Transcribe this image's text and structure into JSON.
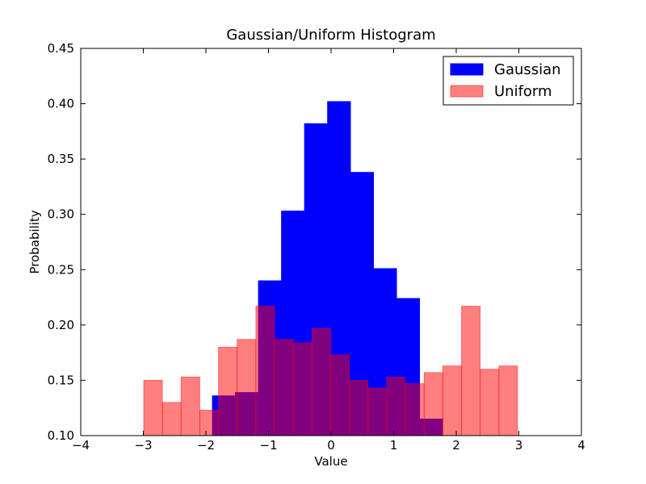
{
  "chart_data": {
    "type": "histogram",
    "title": "Gaussian/Uniform Histogram",
    "xlabel": "Value",
    "ylabel": "Probability",
    "xlim": [
      -4,
      4
    ],
    "xticks": [
      {
        "value": -4,
        "label": "−4"
      },
      {
        "value": -3,
        "label": "−3"
      },
      {
        "value": -2,
        "label": "−2"
      },
      {
        "value": -1,
        "label": "−1"
      },
      0,
      1,
      2,
      3,
      4
    ],
    "ylim": [
      0.1,
      0.45
    ],
    "yticks": [
      {
        "value": 0.1,
        "label": "0.10"
      },
      0.15,
      {
        "value": 0.2,
        "label": "0.20"
      },
      0.25,
      {
        "value": 0.3,
        "label": "0.30"
      },
      0.35,
      {
        "value": 0.4,
        "label": "0.40"
      },
      0.45
    ],
    "legend": "upper right",
    "series": [
      {
        "name": "Gaussian",
        "color": "#0000ff",
        "alpha": 1,
        "bins": [
          -1.897,
          -1.529,
          -1.161,
          -0.793,
          -0.425,
          -0.057,
          0.311,
          0.679,
          1.047,
          1.415,
          1.783
        ],
        "values": [
          0.136,
          0.139,
          0.24,
          0.303,
          0.382,
          0.402,
          0.338,
          0.251,
          0.224,
          0.115
        ]
      },
      {
        "name": "Uniform",
        "color": "#ff0000",
        "alpha": 0.5,
        "bins": [
          -2.994,
          -2.695,
          -2.397,
          -2.098,
          -1.799,
          -1.501,
          -1.202,
          -0.903,
          -0.604,
          -0.306,
          -0.007,
          0.292,
          0.59,
          0.889,
          1.188,
          1.487,
          1.785,
          2.084,
          2.383,
          2.682,
          2.98
        ],
        "values": [
          0.15,
          0.13,
          0.153,
          0.123,
          0.18,
          0.187,
          0.217,
          0.187,
          0.184,
          0.197,
          0.173,
          0.15,
          0.143,
          0.153,
          0.147,
          0.157,
          0.163,
          0.217,
          0.16,
          0.163
        ]
      }
    ]
  }
}
